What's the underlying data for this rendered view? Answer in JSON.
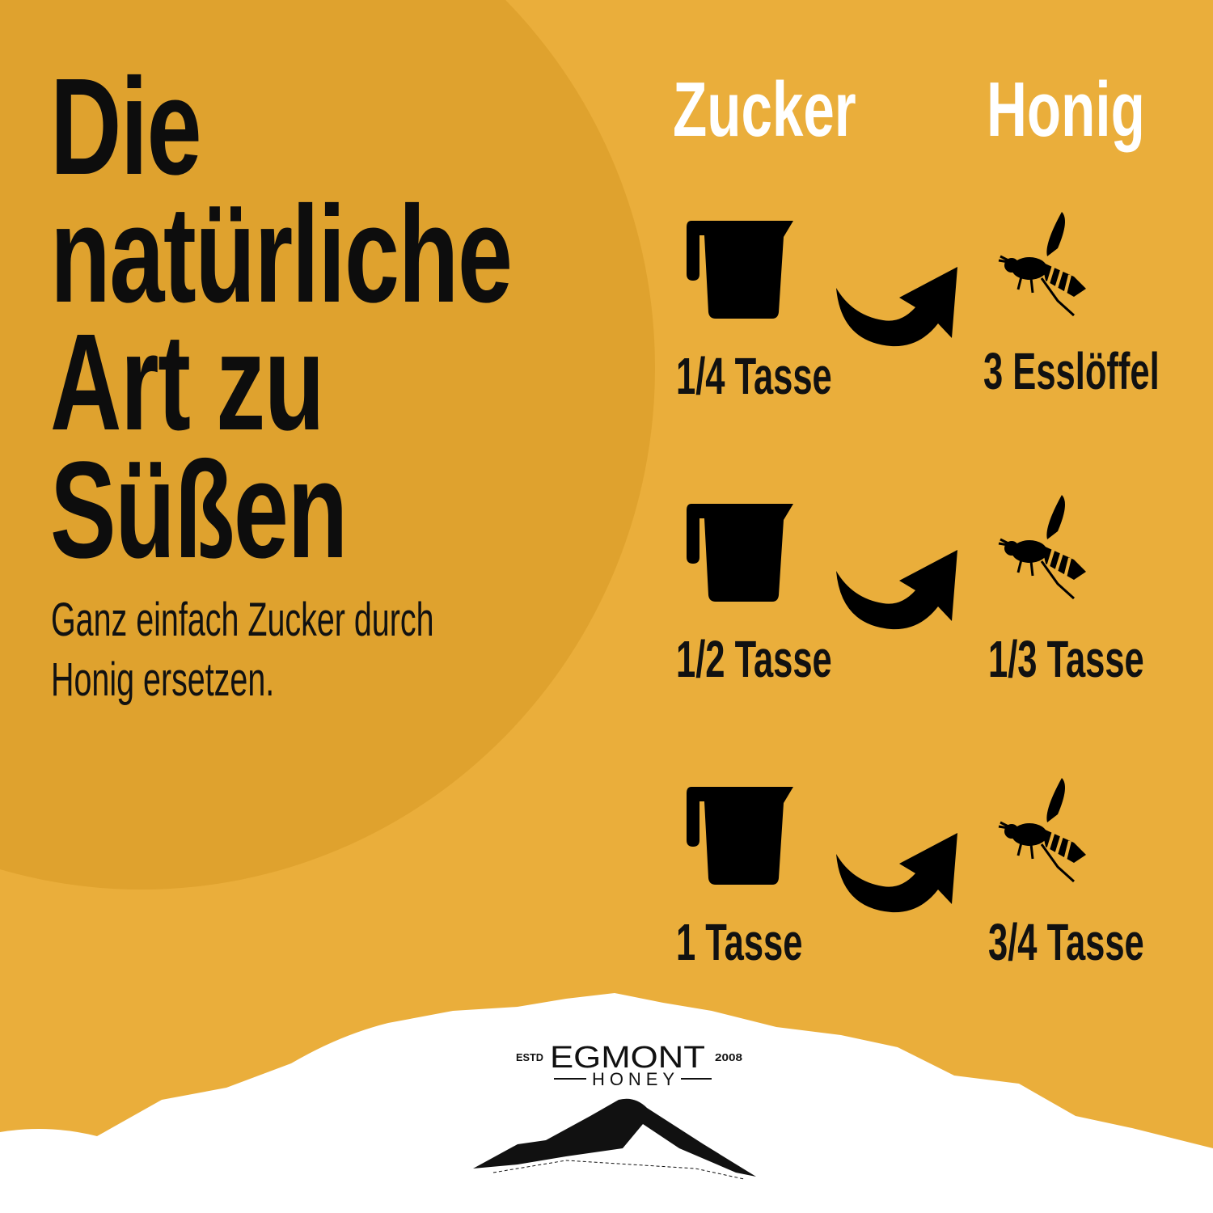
{
  "colors": {
    "background": "#EAAE3B",
    "circle": "#DFA22E",
    "text": "#111111",
    "heading": "#FFFFFF"
  },
  "title": {
    "lines": [
      "Die",
      "natürliche",
      "Art zu",
      "Süßen"
    ]
  },
  "subtitle": {
    "lines": [
      "Ganz einfach Zucker durch",
      "Honig ersetzen."
    ]
  },
  "columns": {
    "left": "Zucker",
    "right": "Honig"
  },
  "rows": [
    {
      "sugar": "1/4 Tasse",
      "honey": "3 Esslöffel"
    },
    {
      "sugar": "1/2 Tasse",
      "honey": "1/3 Tasse"
    },
    {
      "sugar": "1 Tasse",
      "honey": "3/4 Tasse"
    }
  ],
  "icons": {
    "sugar": "measuring-cup-icon",
    "swap": "curved-arrow-icon",
    "honey": "bee-icon"
  },
  "logo": {
    "brand": "EGMONT",
    "sub": "HONEY",
    "estd": "ESTD",
    "year": "2008"
  }
}
